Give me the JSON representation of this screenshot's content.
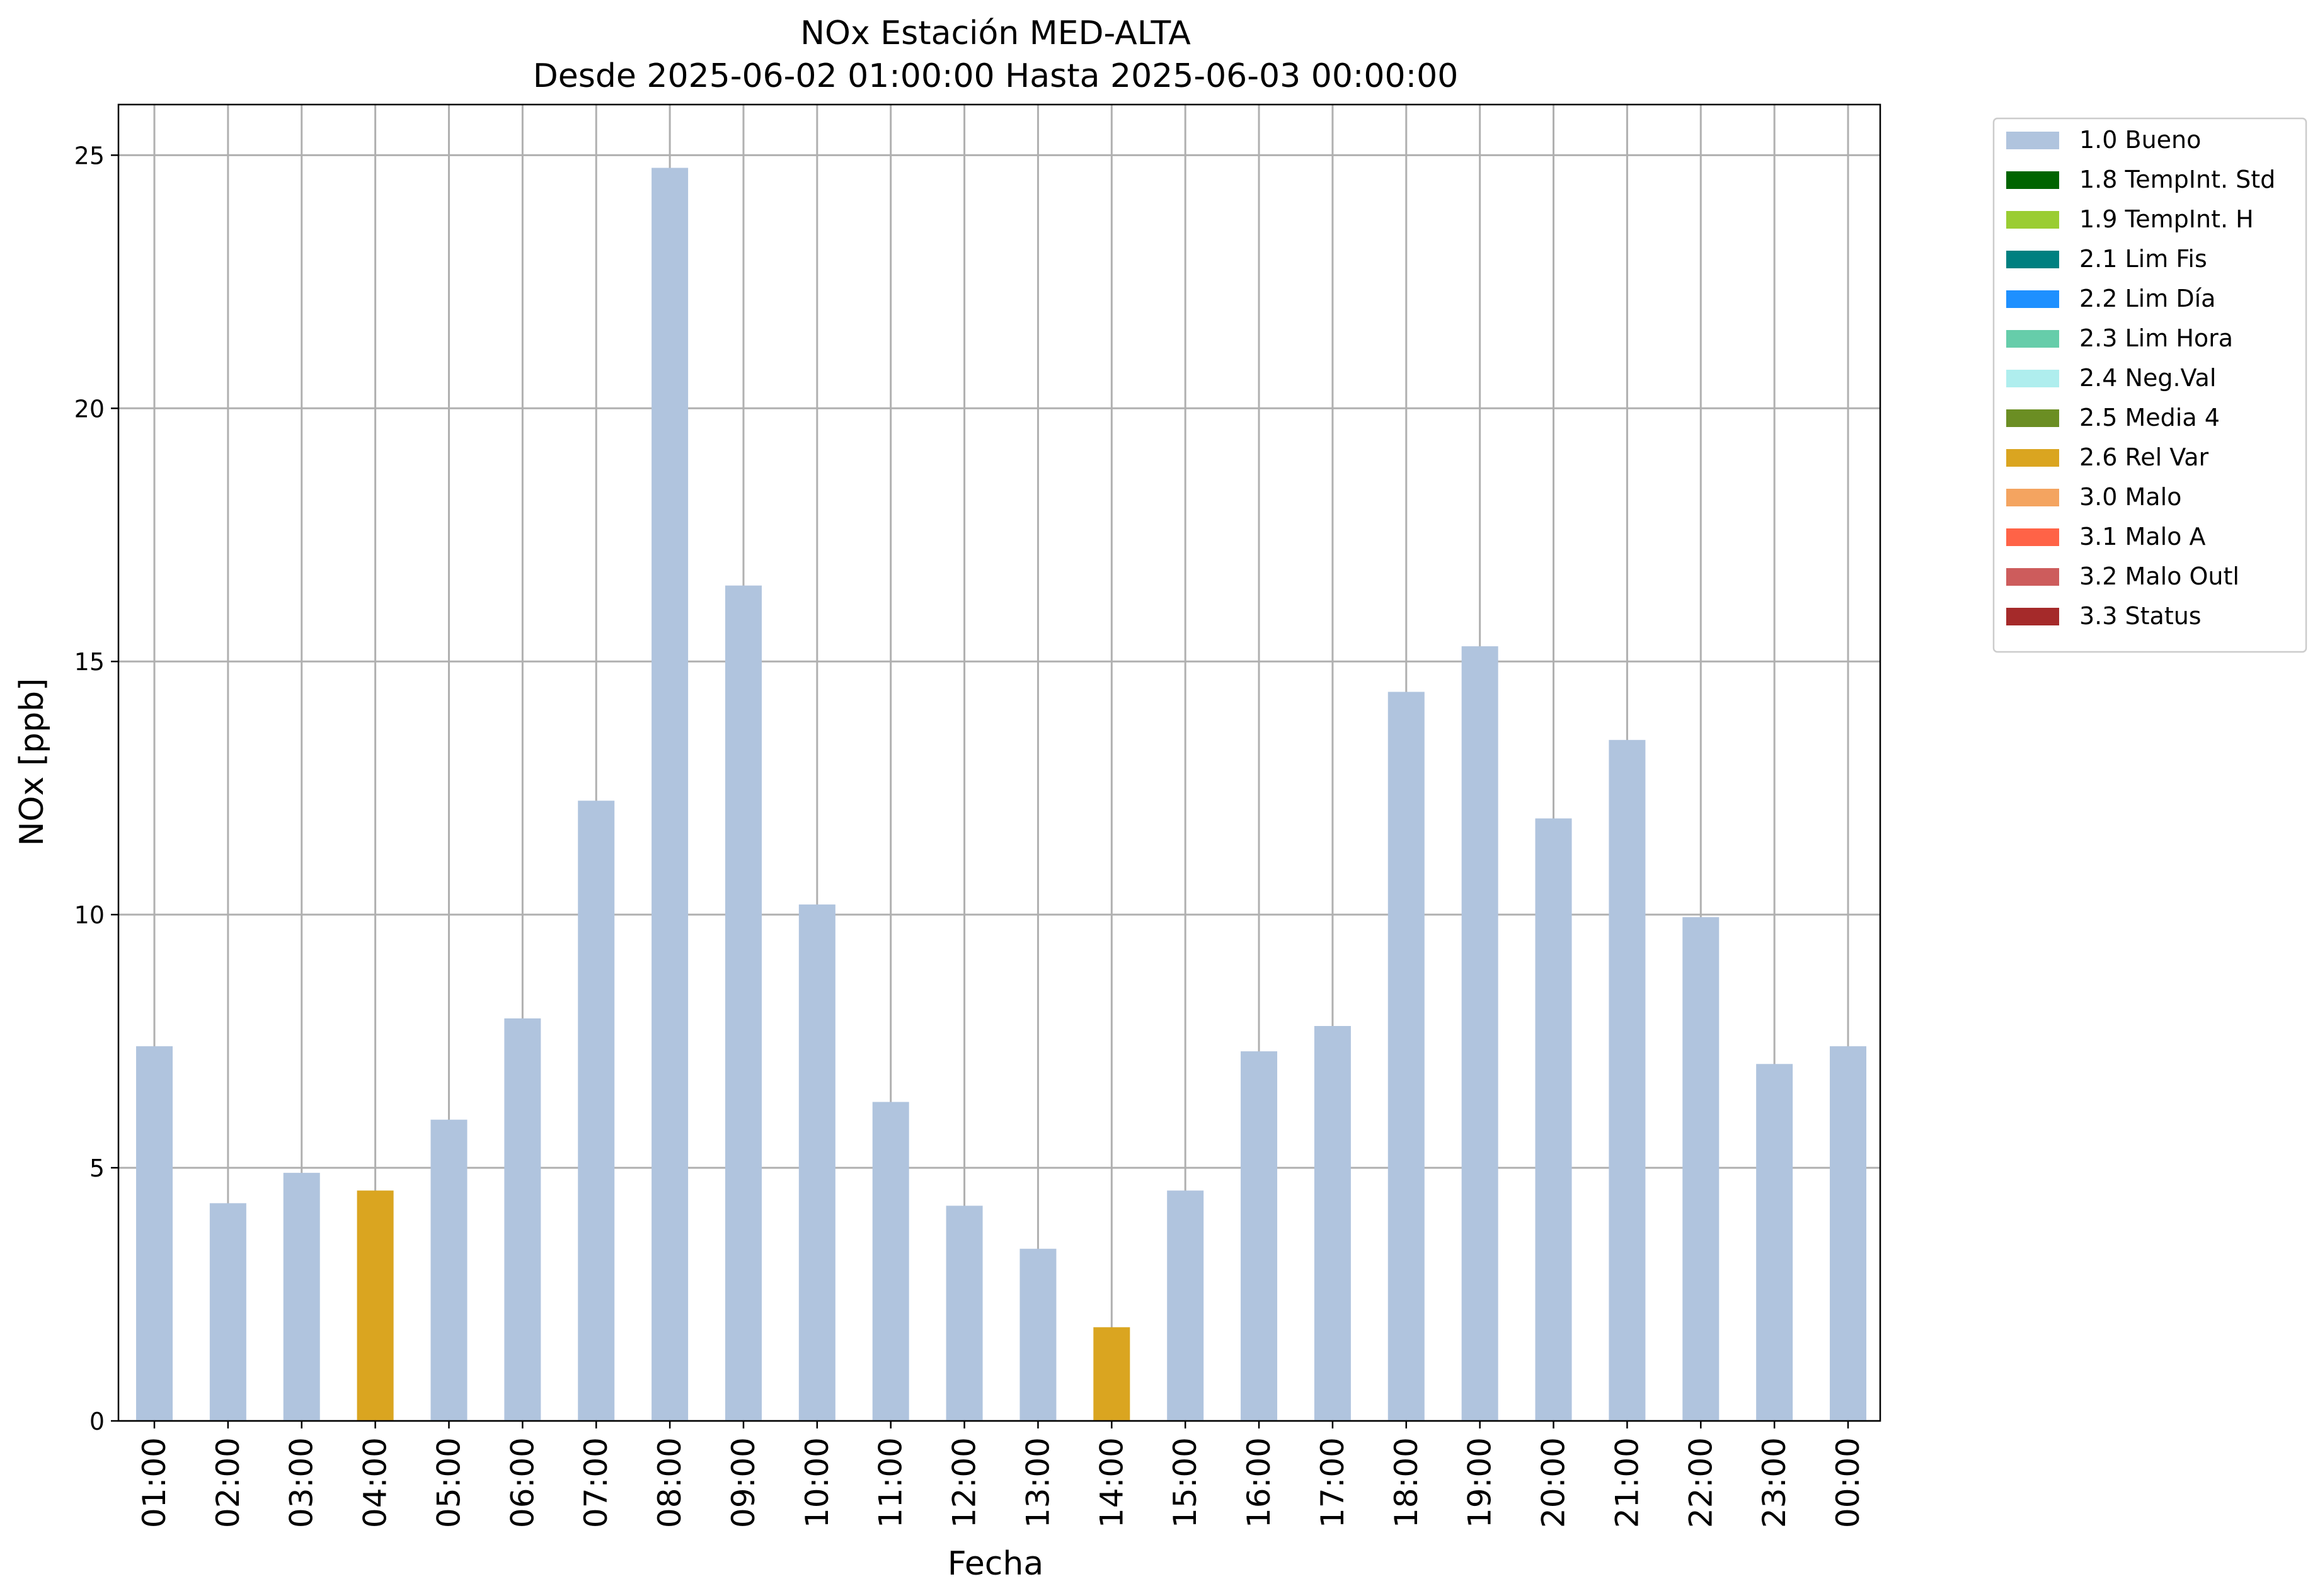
{
  "chart_data": {
    "type": "bar",
    "title": "NOx Estación MED-ALTA",
    "subtitle": "Desde 2025-06-02 01:00:00 Hasta 2025-06-03 00:00:00",
    "xlabel": "Fecha",
    "ylabel": "NOx [ppb]",
    "ylim": [
      0,
      26
    ],
    "yticks": [
      0,
      5,
      10,
      15,
      20,
      25
    ],
    "grid": true,
    "legend_position": "outside-top-right",
    "categories": [
      "01:00",
      "02:00",
      "03:00",
      "04:00",
      "05:00",
      "06:00",
      "07:00",
      "08:00",
      "09:00",
      "10:00",
      "11:00",
      "12:00",
      "13:00",
      "14:00",
      "15:00",
      "16:00",
      "17:00",
      "18:00",
      "19:00",
      "20:00",
      "21:00",
      "22:00",
      "23:00",
      "00:00"
    ],
    "values": [
      7.4,
      4.3,
      4.9,
      4.55,
      5.95,
      7.95,
      12.25,
      24.75,
      16.5,
      10.2,
      6.3,
      4.25,
      3.4,
      1.85,
      4.55,
      7.3,
      7.8,
      14.4,
      15.3,
      11.9,
      13.45,
      9.95,
      7.05,
      7.4
    ],
    "flags": [
      "1.0 Bueno",
      "1.0 Bueno",
      "1.0 Bueno",
      "2.6 Rel Var",
      "1.0 Bueno",
      "1.0 Bueno",
      "1.0 Bueno",
      "1.0 Bueno",
      "1.0 Bueno",
      "1.0 Bueno",
      "1.0 Bueno",
      "1.0 Bueno",
      "1.0 Bueno",
      "2.6 Rel Var",
      "1.0 Bueno",
      "1.0 Bueno",
      "1.0 Bueno",
      "1.0 Bueno",
      "1.0 Bueno",
      "1.0 Bueno",
      "1.0 Bueno",
      "1.0 Bueno",
      "1.0 Bueno",
      "1.0 Bueno"
    ],
    "legend": [
      {
        "label": "1.0 Bueno",
        "color": "#b0c4de"
      },
      {
        "label": "1.8 TempInt. Std",
        "color": "#006400"
      },
      {
        "label": "1.9 TempInt. H",
        "color": "#9acd32"
      },
      {
        "label": "2.1 Lim Fis",
        "color": "#008080"
      },
      {
        "label": "2.2 Lim Día",
        "color": "#1e90ff"
      },
      {
        "label": "2.3 Lim Hora",
        "color": "#66cdaa"
      },
      {
        "label": "2.4 Neg.Val",
        "color": "#afeeee"
      },
      {
        "label": "2.5 Media 4",
        "color": "#6b8e23"
      },
      {
        "label": "2.6 Rel Var",
        "color": "#daa520"
      },
      {
        "label": "3.0 Malo",
        "color": "#f4a460"
      },
      {
        "label": "3.1 Malo A",
        "color": "#ff6347"
      },
      {
        "label": "3.2 Malo Outl",
        "color": "#cd5c5c"
      },
      {
        "label": "3.3 Status",
        "color": "#a52a2a"
      }
    ]
  }
}
